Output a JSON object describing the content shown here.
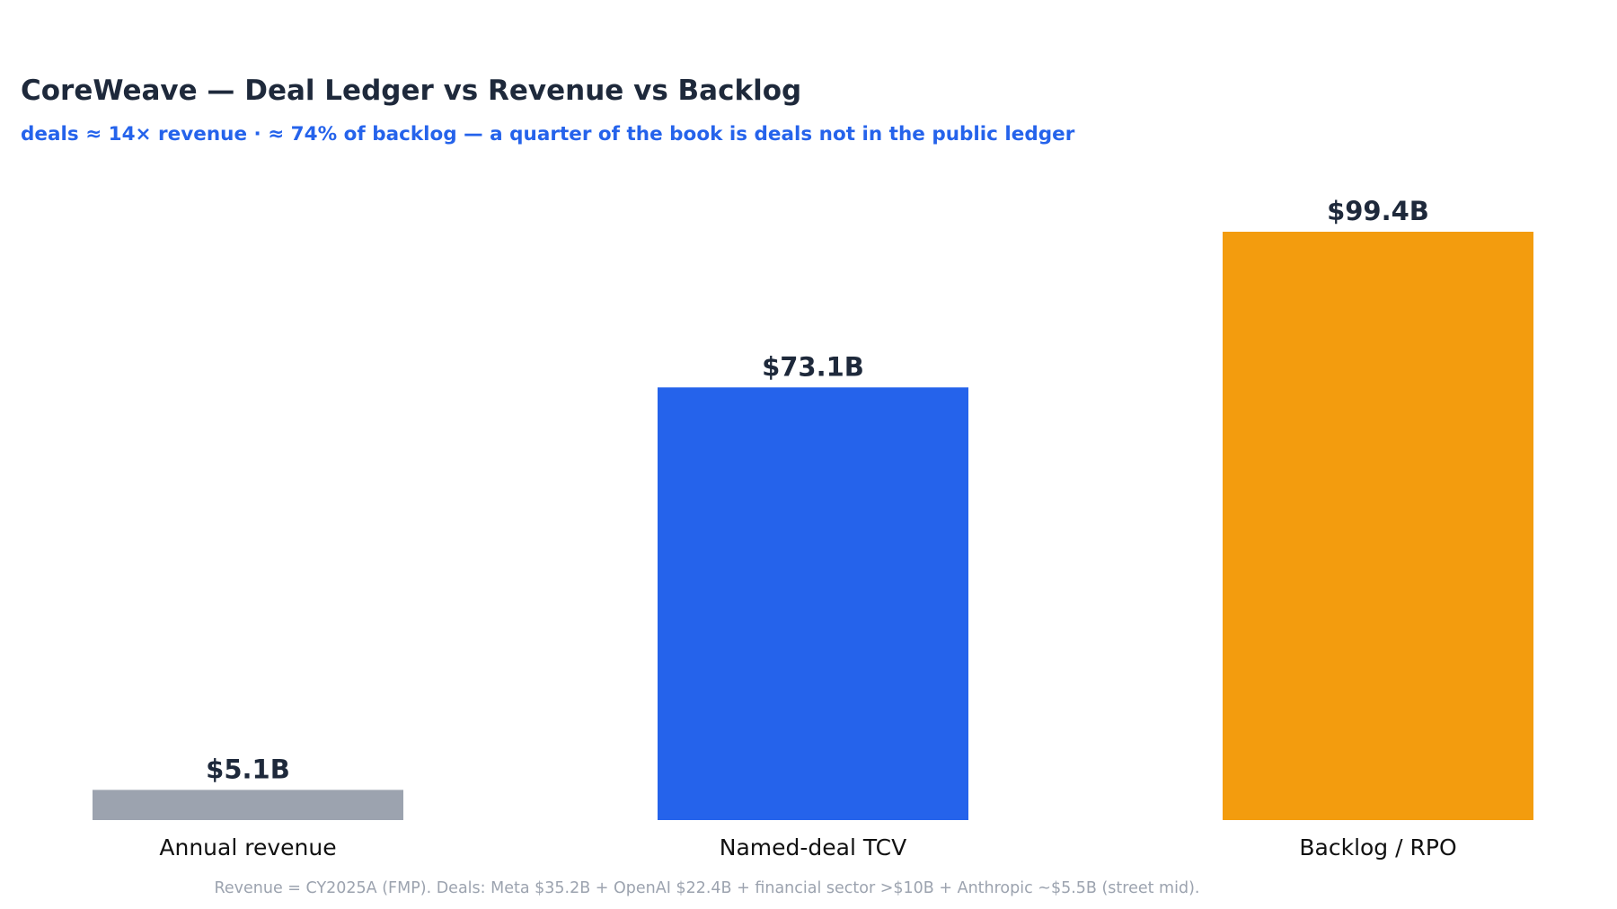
{
  "chart_data": {
    "type": "bar",
    "title": "CoreWeave — Deal Ledger vs Revenue vs Backlog",
    "subtitle": "deals ≈ 14× revenue · ≈ 74% of backlog — a quarter of the book is deals not in the public ledger",
    "categories": [
      "Annual revenue",
      "Named-deal TCV",
      "Backlog / RPO"
    ],
    "values": [
      5.1,
      73.1,
      99.4
    ],
    "value_labels": [
      "$5.1B",
      "$73.1B",
      "$99.4B"
    ],
    "bar_colors": [
      "#9ca3af",
      "#2563eb",
      "#f39c0e"
    ],
    "ylim": [
      0,
      99.4
    ],
    "xlabel": "",
    "ylabel": "",
    "grid": false,
    "legend": "none",
    "footnote": "Revenue = CY2025A (FMP). Deals: Meta $35.2B + OpenAI $22.4B + financial sector >$10B + Anthropic ~$5.5B (street mid)."
  },
  "colors": {
    "title": "#1e293b",
    "subtitle": "#2563eb",
    "value_label": "#1e293b",
    "category_label": "#111111",
    "footnote": "#9ca3af"
  }
}
